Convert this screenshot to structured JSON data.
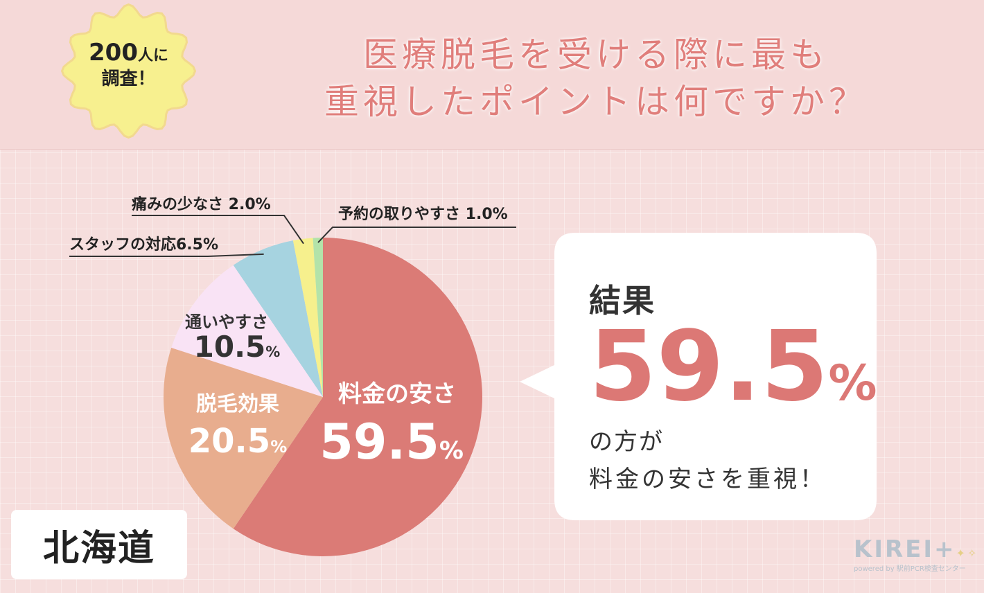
{
  "header": {
    "badge_line1_num": "200",
    "badge_line1_rest": "人に",
    "badge_line2": "調査！",
    "title_line1": "医療脱毛を受ける際に最も",
    "title_line2": "重視したポイントは何ですか？"
  },
  "region": "北海道",
  "result": {
    "label": "結果",
    "value": "59.5",
    "unit": "%",
    "line1": "の方が",
    "line2": "料金の安さを重視！"
  },
  "logo": {
    "name": "KIREI+",
    "sub": "powered by 駅前PCR検査センター"
  },
  "chart_data": {
    "type": "pie",
    "slices": [
      {
        "label": "料金の安さ",
        "value": 59.5,
        "display": "59.5",
        "color": "#db7b76"
      },
      {
        "label": "脱毛効果",
        "value": 20.5,
        "display": "20.5",
        "color": "#e8ad8e"
      },
      {
        "label": "通いやすさ",
        "value": 10.5,
        "display": "10.5",
        "color": "#f9e3f5"
      },
      {
        "label": "スタッフの対応",
        "value": 6.5,
        "display": "スタッフの対応6.5%",
        "color": "#a6d3e0"
      },
      {
        "label": "痛みの少なさ",
        "value": 2.0,
        "display": "痛みの少なさ 2.0%",
        "color": "#f6f08d"
      },
      {
        "label": "予約の取りやすさ",
        "value": 1.0,
        "display": "予約の取りやすさ 1.0%",
        "color": "#b3e3a9"
      }
    ],
    "unit": "%"
  }
}
